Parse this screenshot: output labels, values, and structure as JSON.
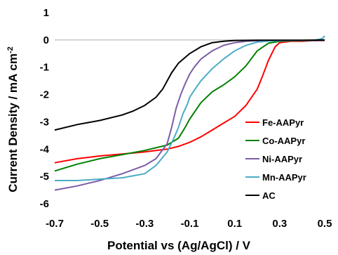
{
  "chart_data": {
    "type": "line",
    "title": "",
    "xlabel": "Potential vs (Ag/AgCl) / V",
    "ylabel_main": "Current Density / mA cm",
    "ylabel_sup": "-2",
    "xlim": [
      -0.7,
      0.5
    ],
    "ylim": [
      -6,
      1
    ],
    "x_ticks": [
      -0.7,
      -0.5,
      -0.3,
      -0.1,
      0.1,
      0.3,
      0.5
    ],
    "x_tick_labels": [
      "-0.7",
      "-0.5",
      "-0.3",
      "-0.1",
      "0.1",
      "0.3",
      "0.5"
    ],
    "y_ticks": [
      1,
      0,
      -1,
      -2,
      -3,
      -4,
      -5,
      -6
    ],
    "y_tick_labels": [
      "1",
      "0",
      "-1",
      "-2",
      "-3",
      "-4",
      "-5",
      "-6"
    ],
    "grid": false,
    "legend_position": "right",
    "series": [
      {
        "name": "Fe-AAPyr",
        "color": "#ff0000",
        "x": [
          -0.7,
          -0.6,
          -0.5,
          -0.4,
          -0.3,
          -0.2,
          -0.15,
          -0.1,
          -0.05,
          0.0,
          0.05,
          0.1,
          0.15,
          0.2,
          0.22,
          0.25,
          0.28,
          0.3,
          0.35,
          0.4,
          0.45,
          0.5
        ],
        "y": [
          -4.5,
          -4.35,
          -4.25,
          -4.18,
          -4.1,
          -4.0,
          -3.9,
          -3.75,
          -3.55,
          -3.3,
          -3.05,
          -2.8,
          -2.4,
          -1.8,
          -1.4,
          -0.75,
          -0.25,
          -0.1,
          -0.05,
          -0.05,
          -0.03,
          -0.02
        ]
      },
      {
        "name": "Co-AAPyr",
        "color": "#008000",
        "x": [
          -0.7,
          -0.6,
          -0.5,
          -0.4,
          -0.3,
          -0.2,
          -0.15,
          -0.12,
          -0.1,
          -0.05,
          0.0,
          0.05,
          0.1,
          0.15,
          0.2,
          0.25,
          0.3,
          0.35,
          0.4,
          0.5
        ],
        "y": [
          -4.8,
          -4.55,
          -4.35,
          -4.2,
          -4.05,
          -3.85,
          -3.6,
          -3.2,
          -2.9,
          -2.3,
          -1.9,
          -1.65,
          -1.35,
          -0.95,
          -0.4,
          -0.12,
          -0.05,
          -0.03,
          -0.02,
          -0.02
        ]
      },
      {
        "name": "Ni-AAPyr",
        "color": "#7b5ea7",
        "x": [
          -0.7,
          -0.6,
          -0.5,
          -0.4,
          -0.3,
          -0.25,
          -0.2,
          -0.18,
          -0.16,
          -0.14,
          -0.12,
          -0.1,
          -0.08,
          -0.05,
          0.0,
          0.05,
          0.1,
          0.15,
          0.2,
          0.3,
          0.5
        ],
        "y": [
          -5.5,
          -5.35,
          -5.15,
          -4.9,
          -4.6,
          -4.35,
          -3.8,
          -3.2,
          -2.5,
          -2.0,
          -1.6,
          -1.25,
          -1.0,
          -0.7,
          -0.4,
          -0.2,
          -0.1,
          -0.05,
          -0.03,
          -0.02,
          -0.02
        ]
      },
      {
        "name": "Mn-AAPyr",
        "color": "#4bacc6",
        "x": [
          -0.7,
          -0.6,
          -0.5,
          -0.4,
          -0.3,
          -0.25,
          -0.2,
          -0.17,
          -0.15,
          -0.13,
          -0.11,
          -0.1,
          -0.08,
          -0.05,
          0.0,
          0.05,
          0.1,
          0.15,
          0.2,
          0.25,
          0.3,
          0.35,
          0.45,
          0.49,
          0.5
        ],
        "y": [
          -5.15,
          -5.15,
          -5.1,
          -5.05,
          -4.9,
          -4.6,
          -4.1,
          -3.6,
          -3.2,
          -2.7,
          -2.35,
          -2.1,
          -1.85,
          -1.5,
          -1.05,
          -0.7,
          -0.4,
          -0.2,
          -0.08,
          -0.04,
          -0.03,
          -0.02,
          -0.02,
          0.05,
          0.15
        ]
      },
      {
        "name": "AC",
        "color": "#000000",
        "x": [
          -0.7,
          -0.6,
          -0.5,
          -0.4,
          -0.35,
          -0.3,
          -0.25,
          -0.22,
          -0.2,
          -0.18,
          -0.15,
          -0.1,
          -0.05,
          0.0,
          0.05,
          0.1,
          0.2,
          0.3,
          0.4,
          0.5
        ],
        "y": [
          -3.3,
          -3.1,
          -2.95,
          -2.75,
          -2.6,
          -2.4,
          -2.1,
          -1.8,
          -1.5,
          -1.2,
          -0.85,
          -0.5,
          -0.25,
          -0.1,
          -0.05,
          -0.02,
          -0.01,
          -0.01,
          -0.01,
          0.0
        ]
      }
    ]
  }
}
